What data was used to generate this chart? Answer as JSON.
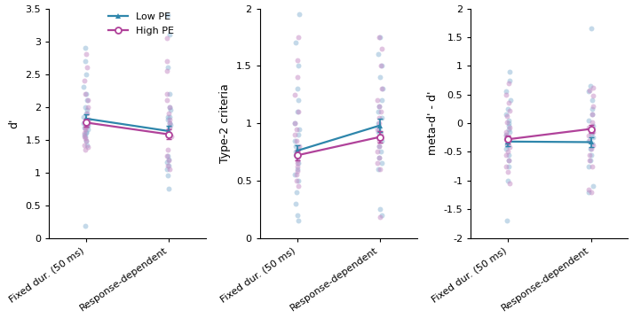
{
  "panels": [
    {
      "ylabel": "d'",
      "ylim": [
        0,
        3.5
      ],
      "yticks": [
        0,
        0.5,
        1.0,
        1.5,
        2.0,
        2.5,
        3.0,
        3.5
      ],
      "mean_low": [
        1.82,
        1.63
      ],
      "mean_high": [
        1.76,
        1.58
      ],
      "err_low": [
        0.07,
        0.08
      ],
      "err_high": [
        0.06,
        0.07
      ],
      "scatter_low_x1": [
        1.62,
        1.73,
        1.55,
        1.6,
        1.71,
        1.65,
        1.57,
        1.68,
        1.75,
        1.8,
        1.85,
        1.9,
        1.95,
        2.0,
        2.1,
        2.2,
        2.3,
        2.5,
        2.7,
        2.9,
        0.18,
        1.42,
        1.48
      ],
      "scatter_high_x1": [
        1.42,
        1.48,
        1.38,
        1.52,
        1.6,
        1.68,
        1.75,
        1.8,
        1.9,
        2.0,
        2.1,
        2.2,
        2.4,
        2.6,
        2.8,
        1.35,
        1.55,
        1.65,
        1.7
      ],
      "scatter_low_x2": [
        1.58,
        1.63,
        1.68,
        1.72,
        1.75,
        1.8,
        1.85,
        0.75,
        0.95,
        1.05,
        1.1,
        1.15,
        1.2,
        1.25,
        1.85,
        1.95,
        2.0,
        2.2,
        2.6,
        3.1,
        3.4
      ],
      "scatter_high_x2": [
        1.05,
        1.1,
        1.18,
        1.25,
        1.35,
        1.55,
        1.6,
        1.68,
        1.75,
        1.8,
        1.9,
        2.0,
        2.1,
        2.2,
        2.55,
        2.7,
        3.05
      ]
    },
    {
      "ylabel": "Type-2 criteria",
      "ylim": [
        0,
        2
      ],
      "yticks": [
        0,
        0.5,
        1.0,
        1.5,
        2.0
      ],
      "mean_low": [
        0.76,
        0.98
      ],
      "mean_high": [
        0.72,
        0.88
      ],
      "err_low": [
        0.05,
        0.06
      ],
      "err_high": [
        0.04,
        0.05
      ],
      "scatter_low_x1": [
        0.5,
        0.55,
        0.6,
        0.65,
        0.7,
        0.72,
        0.75,
        0.78,
        0.8,
        0.85,
        0.9,
        0.95,
        1.0,
        1.1,
        1.2,
        1.3,
        1.5,
        1.7,
        1.95,
        0.15,
        0.2,
        0.3,
        0.4
      ],
      "scatter_high_x1": [
        0.45,
        0.5,
        0.55,
        0.58,
        0.62,
        0.65,
        0.68,
        0.72,
        0.76,
        0.8,
        0.85,
        0.9,
        0.95,
        1.0,
        1.1,
        1.25,
        1.4,
        1.55,
        1.75
      ],
      "scatter_low_x2": [
        0.6,
        0.65,
        0.7,
        0.75,
        0.8,
        0.85,
        0.88,
        0.92,
        0.95,
        1.0,
        1.05,
        1.1,
        1.15,
        1.2,
        1.3,
        1.4,
        1.5,
        1.6,
        1.75,
        0.2,
        0.25
      ],
      "scatter_high_x2": [
        0.6,
        0.65,
        0.7,
        0.75,
        0.8,
        0.85,
        0.9,
        0.95,
        1.0,
        1.05,
        1.1,
        1.15,
        1.2,
        1.3,
        1.5,
        1.65,
        1.75,
        0.18
      ]
    },
    {
      "ylabel": "meta-d' - d'",
      "ylim": [
        -2,
        2
      ],
      "yticks": [
        -2,
        -1.5,
        -1.0,
        -0.5,
        0,
        0.5,
        1.0,
        1.5,
        2.0
      ],
      "mean_low": [
        -0.32,
        -0.33
      ],
      "mean_high": [
        -0.28,
        -0.1
      ],
      "err_low": [
        0.08,
        0.08
      ],
      "err_high": [
        0.07,
        0.07
      ],
      "scatter_low_x1": [
        -0.35,
        -0.3,
        -0.25,
        -0.2,
        -0.15,
        -0.1,
        -0.05,
        0.05,
        0.15,
        0.25,
        0.4,
        0.55,
        0.75,
        0.9,
        -0.45,
        -0.55,
        -0.65,
        -0.75,
        -1.0,
        -1.7,
        -0.38,
        0.0
      ],
      "scatter_high_x1": [
        -0.5,
        -0.42,
        -0.35,
        -0.28,
        -0.22,
        -0.15,
        -0.08,
        0.02,
        0.12,
        0.22,
        0.35,
        0.5,
        0.7,
        -0.55,
        -0.65,
        -0.75,
        -0.85,
        -1.05
      ],
      "scatter_low_x2": [
        -0.35,
        -0.3,
        -0.25,
        -0.2,
        -0.15,
        -0.1,
        -0.05,
        0.05,
        0.15,
        0.25,
        0.4,
        0.55,
        0.65,
        -0.45,
        -0.55,
        -0.65,
        -0.75,
        -1.1,
        -1.2,
        1.65
      ],
      "scatter_high_x2": [
        -0.45,
        -0.38,
        -0.3,
        -0.22,
        -0.15,
        -0.08,
        0.02,
        0.15,
        0.3,
        0.48,
        0.58,
        -0.55,
        -0.65,
        -0.75,
        -1.15,
        -1.2,
        0.62
      ]
    }
  ],
  "xtick_labels": [
    "Fixed dur. (50 ms)",
    "Response-dependent"
  ],
  "color_low": "#2e86ab",
  "color_high": "#b0429a",
  "scatter_color_low": "#8ab4d4",
  "scatter_color_high": "#c48ac4",
  "scatter_alpha": 0.5,
  "scatter_size": 18,
  "line_width": 1.6,
  "marker_size": 5,
  "legend_labels": [
    "Low PE",
    "High PE"
  ]
}
